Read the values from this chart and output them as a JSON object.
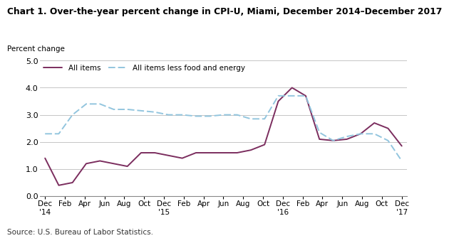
{
  "title": "Chart 1. Over-the-year percent change in CPI-U, Miami, December 2014–December 2017",
  "ylabel": "Percent change",
  "source": "Source: U.S. Bureau of Statistics.",
  "ylim": [
    0.0,
    5.0
  ],
  "yticks": [
    0.0,
    1.0,
    2.0,
    3.0,
    4.0,
    5.0
  ],
  "all_items": [
    1.4,
    0.4,
    0.5,
    1.2,
    1.3,
    1.2,
    1.1,
    1.6,
    1.6,
    1.5,
    1.4,
    1.6,
    1.6,
    1.6,
    1.6,
    1.7,
    1.9,
    3.5,
    4.0,
    3.7,
    2.1,
    2.05,
    2.1,
    2.3,
    2.7,
    2.5,
    1.85
  ],
  "all_items_less": [
    2.3,
    2.3,
    3.0,
    3.4,
    3.4,
    3.2,
    3.2,
    3.15,
    3.1,
    3.0,
    3.0,
    2.95,
    2.95,
    3.0,
    3.0,
    2.85,
    2.85,
    3.7,
    3.7,
    3.7,
    2.35,
    2.05,
    2.2,
    2.3,
    2.3,
    2.05,
    1.3
  ],
  "x_labels": [
    "Dec\n'14",
    "Feb",
    "Apr",
    "Jun",
    "Aug",
    "Oct",
    "Dec\n'15",
    "Feb",
    "Apr",
    "Jun",
    "Aug",
    "Oct",
    "Dec\n'16",
    "Feb",
    "Apr",
    "Jun",
    "Aug",
    "Oct",
    "Dec\n'17"
  ],
  "x_tick_positions": [
    0,
    2,
    4,
    6,
    8,
    10,
    12,
    14,
    16,
    18,
    20,
    22,
    24,
    26,
    28,
    30,
    32,
    34,
    36
  ],
  "all_items_color": "#7B2D5E",
  "all_items_less_color": "#92C5DE",
  "background_color": "#ffffff",
  "grid_color": "#bbbbbb"
}
